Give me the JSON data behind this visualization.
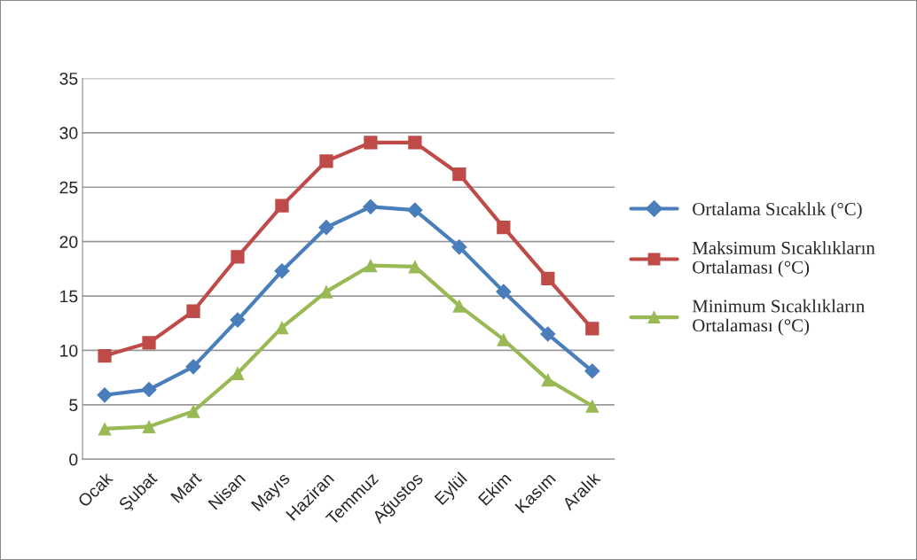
{
  "chart_data": {
    "type": "line",
    "categories": [
      "Ocak",
      "Şubat",
      "Mart",
      "Nisan",
      "Mayıs",
      "Haziran",
      "Temmuz",
      "Ağustos",
      "Eylül",
      "Ekim",
      "Kasım",
      "Aralık"
    ],
    "series": [
      {
        "name": "Ortalama Sıcaklık (°C)",
        "color": "#4a7ebb",
        "marker": "diamond",
        "values": [
          5.9,
          6.4,
          8.5,
          12.8,
          17.3,
          21.3,
          23.2,
          22.9,
          19.5,
          15.4,
          11.5,
          8.1
        ]
      },
      {
        "name": "Maksimum Sıcaklıkların\nOrtalaması (°C)",
        "color": "#be4b48",
        "marker": "square",
        "values": [
          9.5,
          10.7,
          13.6,
          18.6,
          23.3,
          27.4,
          29.1,
          29.1,
          26.2,
          21.3,
          16.6,
          12.0
        ]
      },
      {
        "name": "Minimum Sıcaklıkların\nOrtalaması (°C)",
        "color": "#98b954",
        "marker": "triangle",
        "values": [
          2.8,
          3.0,
          4.4,
          7.9,
          12.1,
          15.4,
          17.8,
          17.7,
          14.1,
          11.0,
          7.3,
          4.9
        ]
      }
    ],
    "ylim": [
      0,
      35
    ],
    "yticks": [
      0,
      5,
      10,
      15,
      20,
      25,
      30,
      35
    ],
    "grid": "y",
    "legend": "right"
  }
}
